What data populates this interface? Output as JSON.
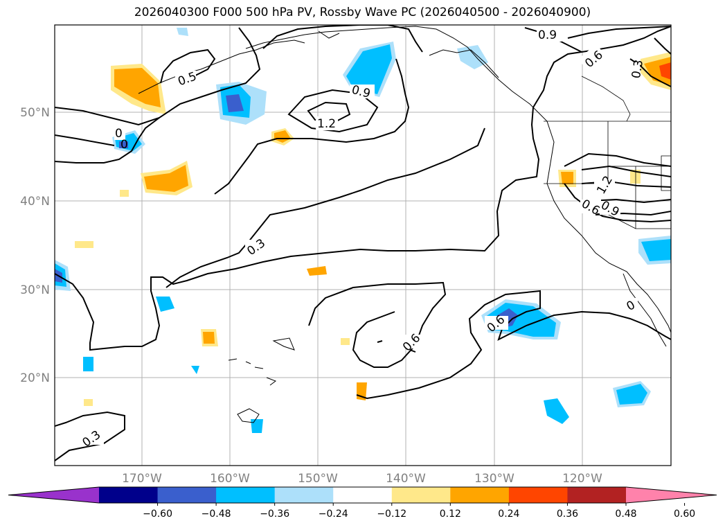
{
  "title": "2026040300 F000 500 hPa PV, Rossby Wave PC (2026040500 - 2026040900)",
  "lat_labels": [
    "50°N",
    "40°N",
    "30°N",
    "20°N"
  ],
  "lon_labels": [
    "170°W",
    "160°W",
    "150°W",
    "140°W",
    "130°W",
    "120°W"
  ],
  "contour_labels": [
    "0.9",
    "0.6",
    "0.3",
    "0.5",
    "0.9",
    "1.2",
    "0",
    "0",
    "1.2",
    "0.6",
    "0.9",
    "0.3",
    "0.6",
    "0",
    "0.6",
    "0.3"
  ],
  "colorbar": {
    "ticks": [
      "−0.60",
      "−0.48",
      "−0.36",
      "−0.24",
      "−0.12",
      "0.12",
      "0.24",
      "0.36",
      "0.48",
      "0.60"
    ],
    "colors": [
      "#9932CC",
      "#00008B",
      "#3A5FCD",
      "#00BFFF",
      "#ADE0FA",
      "#FFFFFF",
      "#FFE88A",
      "#FFA500",
      "#FF4500",
      "#B22222",
      "#FF82AB"
    ]
  }
}
